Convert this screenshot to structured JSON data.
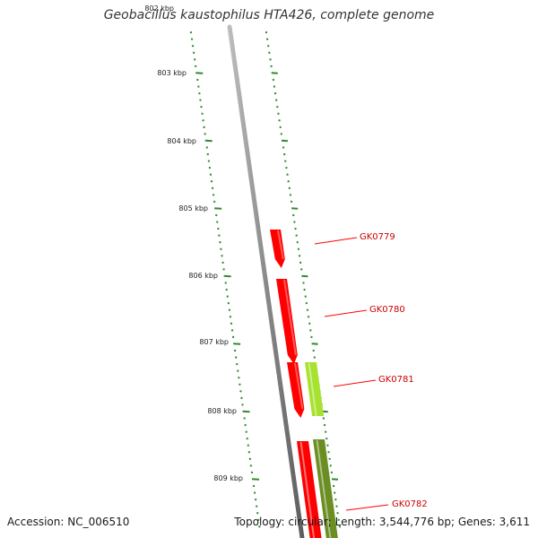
{
  "title": "Geobacillus kaustophilus HTA426, complete genome",
  "accession_text": "Accession: NC_006510",
  "summary_text": "Topology: circular; Length: 3,544,776 bp; Genes: 3,611",
  "colors": {
    "backbone": "#8a8a8a",
    "tick_marks": "#2e8b2e",
    "gene_forward": "#ff0000",
    "gene_reverse_light": "#a6e22e",
    "gene_reverse_dark": "#6b8e23",
    "label_text": "#cc0000",
    "callout_line": "#ff0000"
  },
  "ruler": {
    "faded_label": "802 kbp",
    "labels": [
      "803 kbp",
      "804 kbp",
      "805 kbp",
      "806 kbp",
      "807 kbp",
      "808 kbp",
      "809 kbp"
    ]
  },
  "genes": [
    {
      "name": "GK0779",
      "strand": "forward",
      "color": "#ff0000"
    },
    {
      "name": "GK0780",
      "strand": "forward",
      "color": "#ff0000"
    },
    {
      "name": "GK0781",
      "strand": "reverse",
      "color": "#a6e22e"
    },
    {
      "name": "GK0782",
      "strand": "reverse",
      "color": "#6b8e23"
    }
  ],
  "extra_forward_feature": {
    "color": "#ff0000"
  }
}
